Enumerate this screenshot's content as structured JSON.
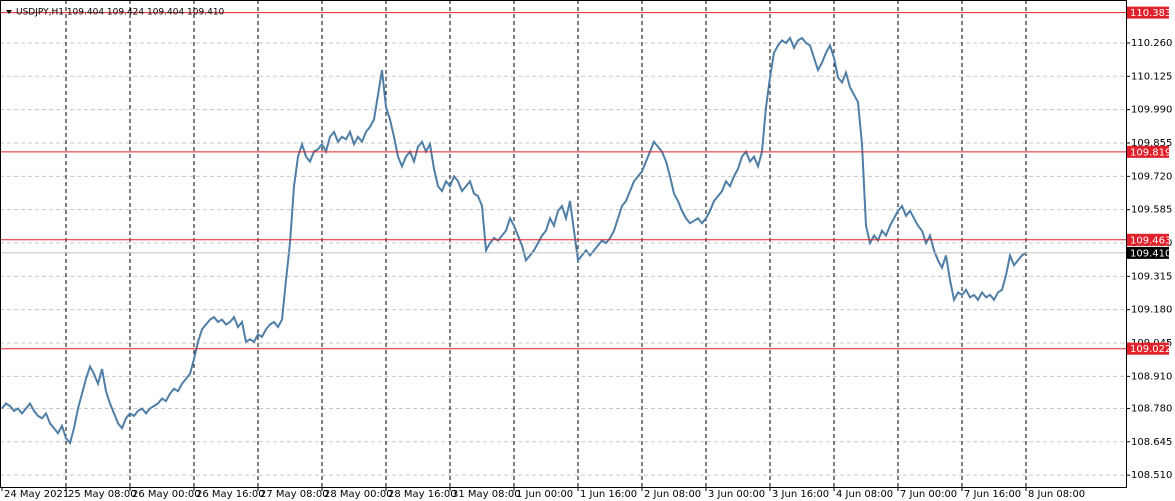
{
  "chart_data": {
    "type": "line",
    "title": "USDJPY,H1  109.404 109.424 109.404 109.410",
    "series": [
      {
        "color": "#4f7ea6",
        "values": [
          108.78,
          108.8,
          108.79,
          108.77,
          108.78,
          108.76,
          108.78,
          108.8,
          108.77,
          108.75,
          108.74,
          108.76,
          108.72,
          108.7,
          108.68,
          108.71,
          108.66,
          108.64,
          108.7,
          108.78,
          108.84,
          108.9,
          108.95,
          108.92,
          108.88,
          108.94,
          108.85,
          108.8,
          108.76,
          108.72,
          108.7,
          108.74,
          108.76,
          108.75,
          108.77,
          108.78,
          108.76,
          108.78,
          108.79,
          108.8,
          108.82,
          108.81,
          108.84,
          108.86,
          108.85,
          108.88,
          108.9,
          108.92,
          108.98,
          109.05,
          109.1,
          109.12,
          109.14,
          109.15,
          109.13,
          109.14,
          109.12,
          109.13,
          109.15,
          109.11,
          109.13,
          109.05,
          109.06,
          109.05,
          109.08,
          109.07,
          109.1,
          109.12,
          109.13,
          109.11,
          109.14,
          109.3,
          109.45,
          109.68,
          109.8,
          109.85,
          109.8,
          109.78,
          109.82,
          109.83,
          109.85,
          109.82,
          109.88,
          109.9,
          109.86,
          109.88,
          109.87,
          109.9,
          109.85,
          109.88,
          109.86,
          109.9,
          109.92,
          109.95,
          110.05,
          110.15,
          110.0,
          109.95,
          109.88,
          109.8,
          109.76,
          109.8,
          109.82,
          109.78,
          109.84,
          109.86,
          109.82,
          109.85,
          109.75,
          109.68,
          109.66,
          109.7,
          109.68,
          109.72,
          109.7,
          109.66,
          109.68,
          109.7,
          109.65,
          109.64,
          109.6,
          109.42,
          109.45,
          109.47,
          109.46,
          109.48,
          109.5,
          109.55,
          109.52,
          109.48,
          109.44,
          109.38,
          109.4,
          109.42,
          109.45,
          109.48,
          109.5,
          109.55,
          109.52,
          109.58,
          109.6,
          109.55,
          109.62,
          109.5,
          109.38,
          109.4,
          109.42,
          109.4,
          109.42,
          109.44,
          109.46,
          109.45,
          109.47,
          109.5,
          109.55,
          109.6,
          109.62,
          109.66,
          109.7,
          109.72,
          109.74,
          109.78,
          109.82,
          109.86,
          109.84,
          109.82,
          109.78,
          109.72,
          109.65,
          109.62,
          109.58,
          109.55,
          109.53,
          109.54,
          109.55,
          109.53,
          109.55,
          109.58,
          109.62,
          109.64,
          109.66,
          109.7,
          109.68,
          109.72,
          109.75,
          109.8,
          109.82,
          109.78,
          109.8,
          109.76,
          109.82,
          110.0,
          110.12,
          110.22,
          110.25,
          110.27,
          110.26,
          110.28,
          110.24,
          110.27,
          110.28,
          110.26,
          110.25,
          110.2,
          110.15,
          110.18,
          110.22,
          110.25,
          110.2,
          110.12,
          110.1,
          110.14,
          110.08,
          110.05,
          110.02,
          109.85,
          109.52,
          109.45,
          109.48,
          109.46,
          109.5,
          109.48,
          109.52,
          109.55,
          109.58,
          109.6,
          109.56,
          109.58,
          109.55,
          109.52,
          109.5,
          109.45,
          109.48,
          109.42,
          109.38,
          109.35,
          109.4,
          109.3,
          109.22,
          109.25,
          109.24,
          109.26,
          109.23,
          109.24,
          109.22,
          109.25,
          109.23,
          109.24,
          109.22,
          109.25,
          109.26,
          109.32,
          109.4,
          109.36,
          109.38,
          109.4,
          109.41
        ]
      }
    ],
    "xlim": [
      -0.5,
      281
    ],
    "xticks": [
      {
        "value": 0,
        "label": "24 May 2021"
      },
      {
        "value": 16,
        "label": "25 May 08:00"
      },
      {
        "value": 32,
        "label": "26 May 00:00"
      },
      {
        "value": 48,
        "label": "26 May 16:00"
      },
      {
        "value": 64,
        "label": "27 May 08:00"
      },
      {
        "value": 80,
        "label": "28 May 00:00"
      },
      {
        "value": 96,
        "label": "28 May 16:00"
      },
      {
        "value": 112,
        "label": "31 May 08:00"
      },
      {
        "value": 128,
        "label": "1 Jun 00:00"
      },
      {
        "value": 144,
        "label": "1 Jun 16:00"
      },
      {
        "value": 160,
        "label": "2 Jun 08:00"
      },
      {
        "value": 176,
        "label": "3 Jun 00:00"
      },
      {
        "value": 192,
        "label": "3 Jun 16:00"
      },
      {
        "value": 208,
        "label": "4 Jun 08:00"
      },
      {
        "value": 224,
        "label": "7 Jun 00:00"
      },
      {
        "value": 240,
        "label": "7 Jun 16:00"
      },
      {
        "value": 256,
        "label": "8 Jun 08:00"
      }
    ],
    "ylim": [
      108.462,
      110.434
    ],
    "yticks": [
      {
        "value": 110.26,
        "label": "110.260"
      },
      110.125,
      {
        "value": 109.99,
        "label": "109.990"
      },
      109.855,
      {
        "value": 109.72,
        "label": "109.720"
      },
      109.585,
      {
        "value": 109.45,
        "label": "109.450"
      },
      109.315,
      {
        "value": 109.18,
        "label": "109.180"
      },
      109.045,
      {
        "value": 108.91,
        "label": "108.910"
      },
      {
        "value": 108.78,
        "label": "108.780"
      },
      108.645,
      {
        "value": 108.51,
        "label": "108.510"
      }
    ],
    "grid": true,
    "hlines": [
      {
        "value": 110.383,
        "color": "#e0202a"
      },
      {
        "value": 109.819,
        "color": "#e0202a"
      },
      {
        "value": 109.463,
        "color": "#e0202a"
      },
      {
        "value": 109.022,
        "color": "#e0202a"
      },
      {
        "value": 109.41,
        "label": "109.410",
        "color": "#c0c0c0",
        "tag_color": "#000000"
      }
    ]
  }
}
